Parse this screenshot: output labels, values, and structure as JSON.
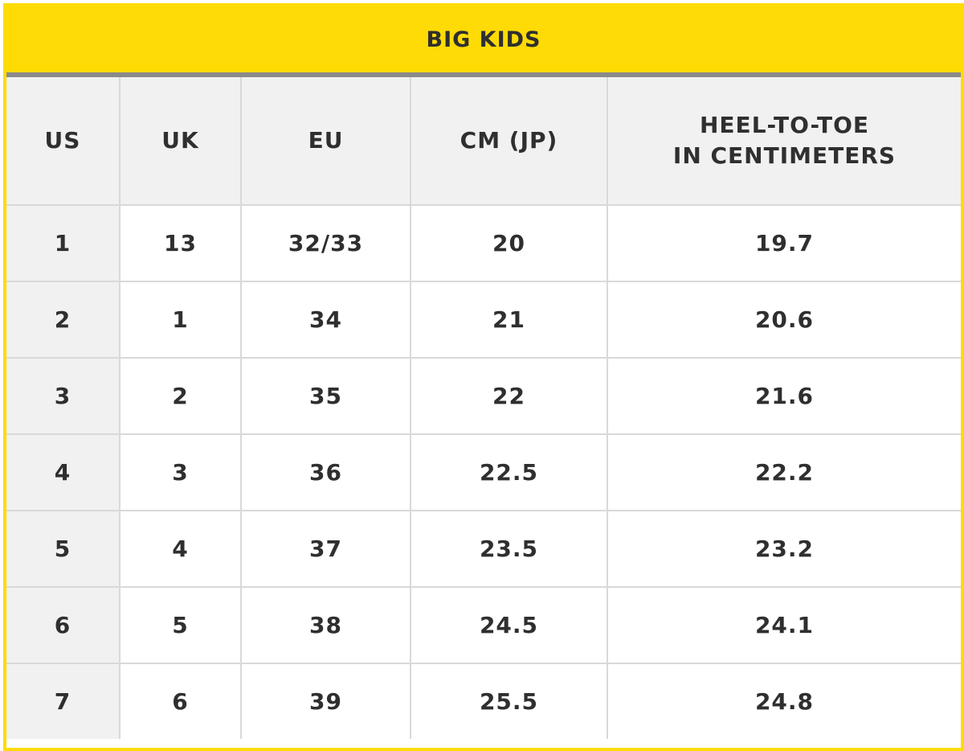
{
  "title": "BIG KIDS",
  "colors": {
    "accent": "#ffdb05",
    "rule": "#8a8a8a",
    "header_bg": "#f1f1f1",
    "grid": "#d9d9d9",
    "text": "#2f2f2f"
  },
  "columns": [
    {
      "lines": [
        "US"
      ]
    },
    {
      "lines": [
        "UK"
      ]
    },
    {
      "lines": [
        "EU"
      ]
    },
    {
      "lines": [
        "CM (JP)"
      ]
    },
    {
      "lines": [
        "HEEL-TO-TOE",
        "IN CENTIMETERS"
      ]
    }
  ],
  "rows": [
    [
      "1",
      "13",
      "32/33",
      "20",
      "19.7"
    ],
    [
      "2",
      "1",
      "34",
      "21",
      "20.6"
    ],
    [
      "3",
      "2",
      "35",
      "22",
      "21.6"
    ],
    [
      "4",
      "3",
      "36",
      "22.5",
      "22.2"
    ],
    [
      "5",
      "4",
      "37",
      "23.5",
      "23.2"
    ],
    [
      "6",
      "5",
      "38",
      "24.5",
      "24.1"
    ],
    [
      "7",
      "6",
      "39",
      "25.5",
      "24.8"
    ]
  ]
}
